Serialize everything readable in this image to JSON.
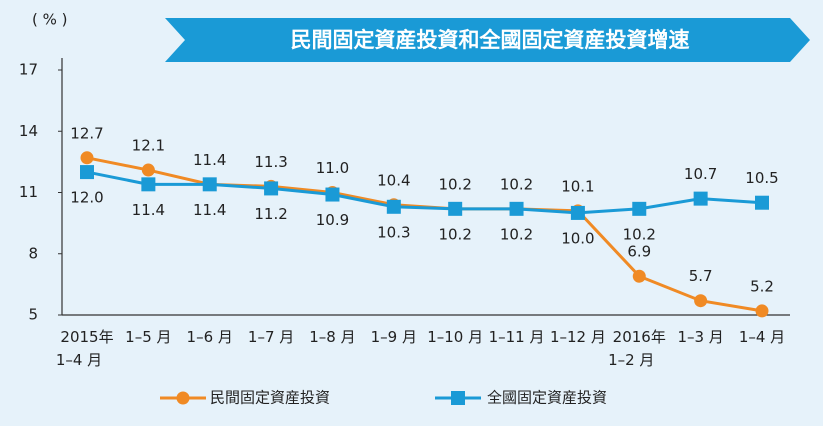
{
  "chart_data": {
    "type": "line",
    "title": "民間固定資産投資和全國固定資産投資增速",
    "unit": "( % )",
    "categories": [
      "2015年\n1–4 月",
      "1–5 月",
      "1–6 月",
      "1–7 月",
      "1–8 月",
      "1–9 月",
      "1–10 月",
      "1–11 月",
      "1–12 月",
      "2016年\n1–2 月",
      "1–3 月",
      "1–4 月"
    ],
    "series": [
      {
        "name": "民間固定資産投資",
        "color": "#f08a24",
        "marker": "circle",
        "values": [
          12.7,
          12.1,
          11.4,
          11.3,
          11.0,
          10.4,
          10.2,
          10.2,
          10.1,
          6.9,
          5.7,
          5.2
        ],
        "value_labels": [
          "12.7",
          "12.1",
          "11.4",
          "11.3",
          "11.0",
          "10.4",
          "10.2",
          "10.2",
          "10.1",
          "6.9",
          "5.7",
          "5.2"
        ]
      },
      {
        "name": "全國固定資産投資",
        "color": "#1a9ad6",
        "marker": "square",
        "values": [
          12.0,
          11.4,
          11.4,
          11.2,
          10.9,
          10.3,
          10.2,
          10.2,
          10.0,
          10.2,
          10.7,
          10.5
        ],
        "value_labels": [
          "12.0",
          "11.4",
          "11.4",
          "11.2",
          "10.9",
          "10.3",
          "10.2",
          "10.2",
          "10.0",
          "10.2",
          "10.7",
          "10.5"
        ]
      }
    ],
    "ylim": [
      5,
      17
    ],
    "yticks": [
      5,
      8,
      11,
      14,
      17
    ]
  }
}
